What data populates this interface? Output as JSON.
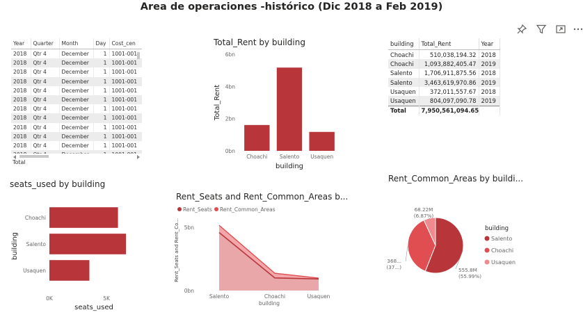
{
  "report_title": "Area de operaciones -histórico (Dic 2018 a Feb 2019)",
  "colors": {
    "primary": "#b8363a",
    "secondary": "#e04e52",
    "tertiary": "#ef8a8e",
    "area_fill": "#e8a7a9"
  },
  "toolbar": {
    "icons": [
      "pin-icon",
      "filter-icon",
      "focus-mode-icon",
      "more-options-icon"
    ]
  },
  "detail_table": {
    "columns": [
      "Year",
      "Quarter",
      "Month",
      "Day",
      "Cost_cen"
    ],
    "rows": [
      [
        "2018",
        "Qtr 4",
        "December",
        "1",
        "1001-001"
      ],
      [
        "2018",
        "Qtr 4",
        "December",
        "1",
        "1001-001"
      ],
      [
        "2018",
        "Qtr 4",
        "December",
        "1",
        "1001-001"
      ],
      [
        "2018",
        "Qtr 4",
        "December",
        "1",
        "1001-001"
      ],
      [
        "2018",
        "Qtr 4",
        "December",
        "1",
        "1001-001"
      ],
      [
        "2018",
        "Qtr 4",
        "December",
        "1",
        "1001-001"
      ],
      [
        "2018",
        "Qtr 4",
        "December",
        "1",
        "1001-001"
      ],
      [
        "2018",
        "Qtr 4",
        "December",
        "1",
        "1001-001"
      ],
      [
        "2018",
        "Qtr 4",
        "December",
        "1",
        "1001-001"
      ],
      [
        "2018",
        "Qtr 4",
        "December",
        "1",
        "1001-001"
      ],
      [
        "2018",
        "Qtr 4",
        "December",
        "1",
        "1001-001"
      ],
      [
        "2018",
        "Qtr 4",
        "December",
        "1",
        "1001-001"
      ]
    ],
    "total_label": "Total"
  },
  "summary_table": {
    "columns": [
      "building",
      "Total_Rent",
      "Year"
    ],
    "rows": [
      [
        "Choachi",
        "510,038,194.32",
        "2018"
      ],
      [
        "Choachi",
        "1,093,882,405.47",
        "2019"
      ],
      [
        "Salento",
        "1,706,911,875.56",
        "2018"
      ],
      [
        "Salento",
        "3,463,619,970.86",
        "2019"
      ],
      [
        "Usaquen",
        "372,011,557.67",
        "2018"
      ],
      [
        "Usaquen",
        "804,097,090.78",
        "2019"
      ]
    ],
    "total_label": "Total",
    "total_value": "7,950,561,094.65"
  },
  "chart_data": [
    {
      "type": "bar",
      "title": "Total_Rent by building",
      "categories": [
        "Choachi",
        "Salento",
        "Usaquen"
      ],
      "values": [
        1603900000.0,
        5170500000.0,
        1176100000.0
      ],
      "xlabel": "building",
      "ylabel": "Total_Rent",
      "ylim": [
        0,
        6000000000.0
      ],
      "yticks": [
        "0bn",
        "2bn",
        "4bn",
        "6bn"
      ],
      "grid": false
    },
    {
      "type": "bar",
      "orientation": "horizontal",
      "title": "seats_used by building",
      "categories": [
        "Choachi",
        "Salento",
        "Usaquen"
      ],
      "values": [
        6000,
        6700,
        3500
      ],
      "xlabel": "seats_used",
      "ylabel": "building",
      "xlim": [
        0,
        7000
      ],
      "xticks": [
        "0K",
        "5K"
      ],
      "grid": false
    },
    {
      "type": "area",
      "title": "Rent_Seats and Rent_Common_Areas b...",
      "categories": [
        "Salento",
        "Choachi",
        "Usaquen"
      ],
      "series": [
        {
          "name": "Rent_Seats",
          "values": [
            4600000000.0,
            1000000000.0,
            920000000.0
          ]
        },
        {
          "name": "Rent_Common_Areas",
          "values": [
            570000000.0,
            370000000.0,
            70000000.0
          ]
        }
      ],
      "stacked": true,
      "xlabel": "building",
      "ylabel": "Rent_Seats and Rent_Co...",
      "ylim": [
        0,
        6500000000.0
      ],
      "yticks": [
        "0bn",
        "5bn"
      ],
      "legend": "top-left"
    },
    {
      "type": "pie",
      "title": "Rent_Common_Areas by buildi...",
      "legend_title": "building",
      "legend": "right",
      "slices": [
        {
          "label": "Salento",
          "value": 555.8,
          "display": "555.8M",
          "pct": "(55.99%)"
        },
        {
          "label": "Choachi",
          "value": 368.6,
          "display": "368...",
          "pct": "(37...)"
        },
        {
          "label": "Usaquen",
          "value": 68.22,
          "display": "68.22M",
          "pct": "(6.87%)"
        }
      ]
    }
  ]
}
